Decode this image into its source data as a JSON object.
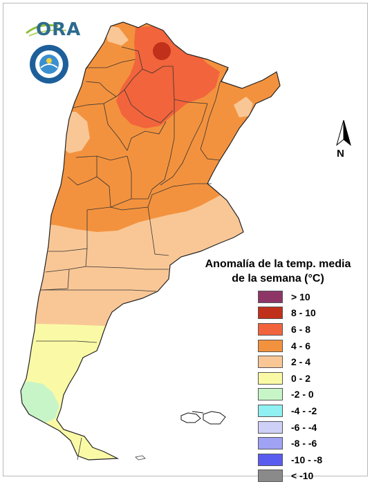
{
  "logo": {
    "text": "ORA"
  },
  "compass": {
    "label": "N"
  },
  "legend": {
    "title_line1": "Anomalía de la temp. media",
    "title_line2": "de la semana (°C)",
    "items": [
      {
        "label": "> 10",
        "color": "#8e3568"
      },
      {
        "label": "8 - 10",
        "color": "#c0301a"
      },
      {
        "label": "6 - 8",
        "color": "#f2643c"
      },
      {
        "label": "4 - 6",
        "color": "#f3923e"
      },
      {
        "label": "2 - 4",
        "color": "#f9c796"
      },
      {
        "label": "0 - 2",
        "color": "#fafaa6"
      },
      {
        "label": "-2 - 0",
        "color": "#c8f5c8"
      },
      {
        "label": "-4 - -2",
        "color": "#90f0f2"
      },
      {
        "label": "-6 - -4",
        "color": "#cfd0f8"
      },
      {
        "label": "-8 - -6",
        "color": "#a0a2f4"
      },
      {
        "label": "-10 - -8",
        "color": "#5a5cf0"
      },
      {
        "label": "< -10",
        "color": "#8a8a8a"
      }
    ]
  }
}
